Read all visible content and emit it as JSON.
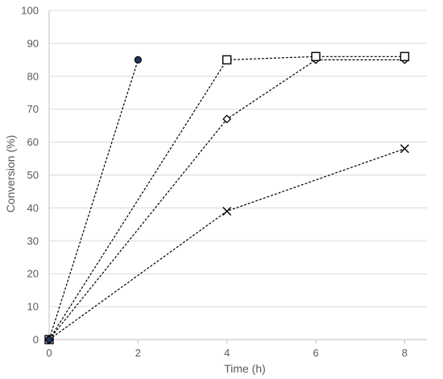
{
  "chart_data": {
    "type": "line",
    "title": "",
    "xlabel": "Time (h)",
    "ylabel": "Conversion (%)",
    "xlim": [
      0,
      8.5
    ],
    "ylim": [
      0,
      100
    ],
    "x_ticks": [
      0,
      2,
      4,
      6,
      8
    ],
    "y_ticks": [
      0,
      10,
      20,
      30,
      40,
      50,
      60,
      70,
      80,
      90,
      100
    ],
    "grid": "horizontal",
    "legend": "none",
    "series": [
      {
        "marker": "filled-circle",
        "color": "#1f3864",
        "x": [
          0,
          2
        ],
        "y": [
          0,
          85
        ]
      },
      {
        "marker": "open-square",
        "color": "#000000",
        "x": [
          0,
          4,
          6,
          8
        ],
        "y": [
          0,
          85,
          86,
          86
        ]
      },
      {
        "marker": "open-diamond",
        "color": "#000000",
        "x": [
          0,
          4,
          6,
          8
        ],
        "y": [
          0,
          67,
          85,
          85
        ]
      },
      {
        "marker": "x-cross",
        "color": "#000000",
        "x": [
          0,
          4,
          8
        ],
        "y": [
          0,
          39,
          58
        ]
      }
    ]
  }
}
